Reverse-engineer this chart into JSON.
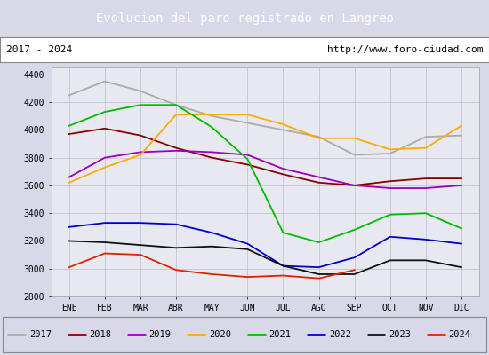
{
  "title": "Evolucion del paro registrado en Langreo",
  "subtitle_left": "2017 - 2024",
  "subtitle_right": "http://www.foro-ciudad.com",
  "title_bg": "#4a86c8",
  "subtitle_bg": "#ffffff",
  "bg_color": "#d8d8e8",
  "plot_bg": "#e8e8f0",
  "months": [
    "ENE",
    "FEB",
    "MAR",
    "ABR",
    "MAY",
    "JUN",
    "JUL",
    "AGO",
    "SEP",
    "OCT",
    "NOV",
    "DIC"
  ],
  "ylim": [
    2800,
    4450
  ],
  "yticks": [
    2800,
    3000,
    3200,
    3400,
    3600,
    3800,
    4000,
    4200,
    4400
  ],
  "series": {
    "2017": {
      "color": "#aaaaaa",
      "data": [
        4250,
        4350,
        4280,
        4180,
        4100,
        4050,
        4000,
        3950,
        3820,
        3830,
        3950,
        3960
      ]
    },
    "2018": {
      "color": "#880000",
      "data": [
        3970,
        4010,
        3960,
        3870,
        3800,
        3750,
        3680,
        3620,
        3600,
        3630,
        3650,
        3650
      ]
    },
    "2019": {
      "color": "#9900bb",
      "data": [
        3660,
        3800,
        3840,
        3850,
        3840,
        3820,
        3720,
        3660,
        3600,
        3580,
        3580,
        3600
      ]
    },
    "2020": {
      "color": "#ffaa00",
      "data": [
        3620,
        3730,
        3820,
        4110,
        4110,
        4110,
        4040,
        3940,
        3940,
        3860,
        3870,
        4030
      ]
    },
    "2021": {
      "color": "#00bb00",
      "data": [
        4030,
        4130,
        4180,
        4180,
        4020,
        3790,
        3260,
        3190,
        3280,
        3390,
        3400,
        3290
      ]
    },
    "2022": {
      "color": "#0000cc",
      "data": [
        3300,
        3330,
        3330,
        3320,
        3260,
        3180,
        3020,
        3010,
        3080,
        3230,
        3210,
        3180
      ]
    },
    "2023": {
      "color": "#111111",
      "data": [
        3200,
        3190,
        3170,
        3150,
        3160,
        3140,
        3020,
        2960,
        2960,
        3060,
        3060,
        3010
      ]
    },
    "2024": {
      "color": "#dd2200",
      "data": [
        3010,
        3110,
        3100,
        2990,
        2960,
        2940,
        2950,
        2930,
        2990,
        null,
        null,
        null
      ]
    }
  }
}
